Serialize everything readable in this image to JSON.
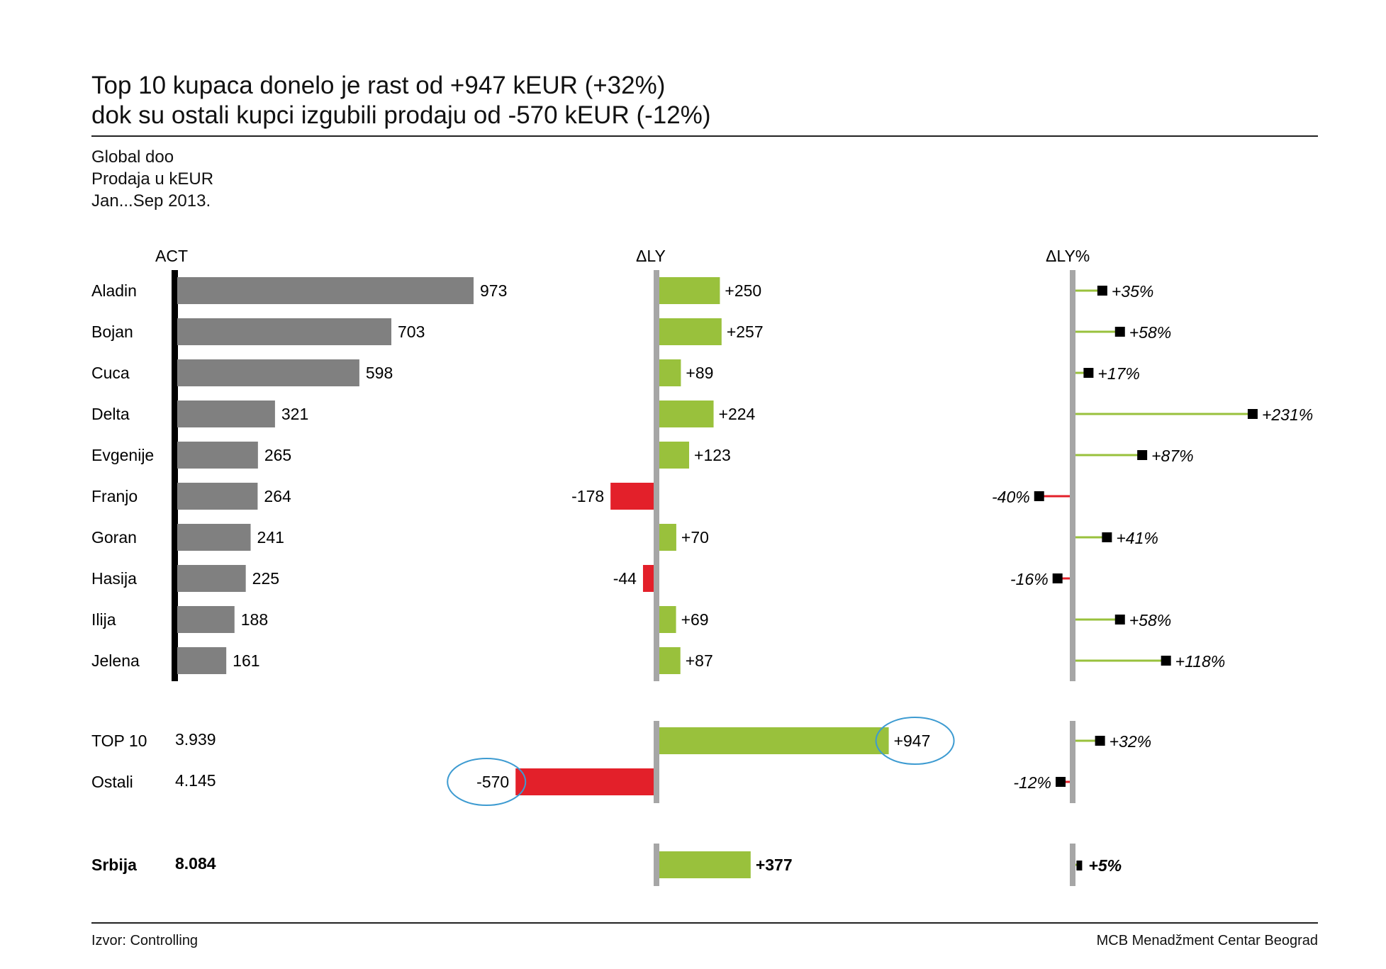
{
  "title": {
    "line1": "Top 10 kupaca donelo je rast od +947 kEUR (+32%)",
    "line2": "dok su ostali kupci izgubili prodaju od -570 kEUR (-12%)"
  },
  "meta": {
    "company": "Global doo",
    "measure": "Prodaja u kEUR",
    "period": "Jan...Sep 2013."
  },
  "footer": {
    "source": "Izvor: Controlling",
    "publisher": "MCB Menadžment Centar Beograd"
  },
  "colors": {
    "act_bar": "#808080",
    "positive": "#99c13c",
    "negative": "#e3202a",
    "axis_act": "#000000",
    "axis_delta": "#a6a6a6",
    "marker": "#000000",
    "highlight_circle": "#3d9bd1"
  },
  "chart_data": {
    "type": "bar",
    "panels": [
      "ACT",
      "ΔLY",
      "ΔLY%"
    ],
    "customers": [
      {
        "name": "Aladin",
        "act": "973",
        "act_value": 973,
        "dly": "+250",
        "dly_value": 250,
        "dlyp": "+35%",
        "dlyp_value": 35
      },
      {
        "name": "Bojan",
        "act": "703",
        "act_value": 703,
        "dly": "+257",
        "dly_value": 257,
        "dlyp": "+58%",
        "dlyp_value": 58
      },
      {
        "name": "Cuca",
        "act": "598",
        "act_value": 598,
        "dly": "+89",
        "dly_value": 89,
        "dlyp": "+17%",
        "dlyp_value": 17
      },
      {
        "name": "Delta",
        "act": "321",
        "act_value": 321,
        "dly": "+224",
        "dly_value": 224,
        "dlyp": "+231%",
        "dlyp_value": 231
      },
      {
        "name": "Evgenije",
        "act": "265",
        "act_value": 265,
        "dly": "+123",
        "dly_value": 123,
        "dlyp": "+87%",
        "dlyp_value": 87
      },
      {
        "name": "Franjo",
        "act": "264",
        "act_value": 264,
        "dly": "-178",
        "dly_value": -178,
        "dlyp": "-40%",
        "dlyp_value": -40
      },
      {
        "name": "Goran",
        "act": "241",
        "act_value": 241,
        "dly": "+70",
        "dly_value": 70,
        "dlyp": "+41%",
        "dlyp_value": 41
      },
      {
        "name": "Hasija",
        "act": "225",
        "act_value": 225,
        "dly": "-44",
        "dly_value": -44,
        "dlyp": "-16%",
        "dlyp_value": -16
      },
      {
        "name": "Ilija",
        "act": "188",
        "act_value": 188,
        "dly": "+69",
        "dly_value": 69,
        "dlyp": "+58%",
        "dlyp_value": 58
      },
      {
        "name": "Jelena",
        "act": "161",
        "act_value": 161,
        "dly": "+87",
        "dly_value": 87,
        "dlyp": "+118%",
        "dlyp_value": 118
      }
    ],
    "groups": [
      {
        "name": "TOP  10",
        "act": "3.939",
        "dly": "+947",
        "dly_value": 947,
        "dlyp": "+32%",
        "dlyp_value": 32,
        "highlight": true
      },
      {
        "name": "Ostali",
        "act": "4.145",
        "dly": "-570",
        "dly_value": -570,
        "dlyp": "-12%",
        "dlyp_value": -12,
        "highlight": true
      }
    ],
    "total": {
      "name": "Srbija",
      "act": "8.084",
      "dly": "+377",
      "dly_value": 377,
      "dlyp": "+5%",
      "dlyp_value": 5
    }
  }
}
